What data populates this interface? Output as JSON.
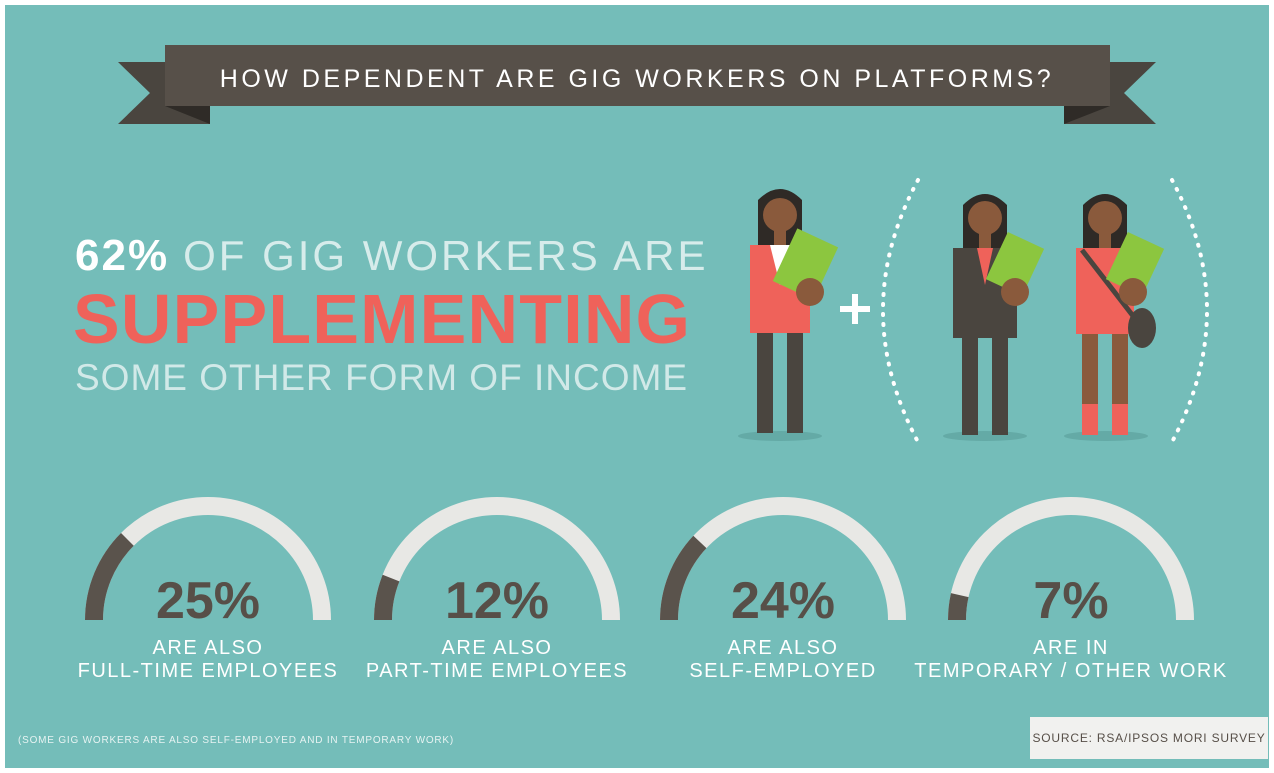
{
  "banner": "HOW DEPENDENT ARE GIG WORKERS ON PLATFORMS?",
  "headline": {
    "lead_strong": "62%",
    "lead_rest": "OF GIG WORKERS ARE",
    "emphasis": "SUPPLEMENTING",
    "tail": "SOME OTHER FORM OF INCOME"
  },
  "gauge_range": [
    0,
    100
  ],
  "gauges": [
    {
      "value": 25,
      "value_label": "25%",
      "line1": "ARE ALSO",
      "line2": "FULL-TIME EMPLOYEES"
    },
    {
      "value": 12,
      "value_label": "12%",
      "line1": "ARE ALSO",
      "line2": "PART-TIME EMPLOYEES"
    },
    {
      "value": 24,
      "value_label": "24%",
      "line1": "ARE ALSO",
      "line2": "SELF-EMPLOYED"
    },
    {
      "value": 7,
      "value_label": "7%",
      "line1": "ARE IN",
      "line2": "TEMPORARY / OTHER WORK"
    }
  ],
  "footnote": "(SOME GIG WORKERS ARE ALSO SELF-EMPLOYED AND IN TEMPORARY WORK)",
  "source": "SOURCE: RSA/IPSOS MORI SURVEY"
}
